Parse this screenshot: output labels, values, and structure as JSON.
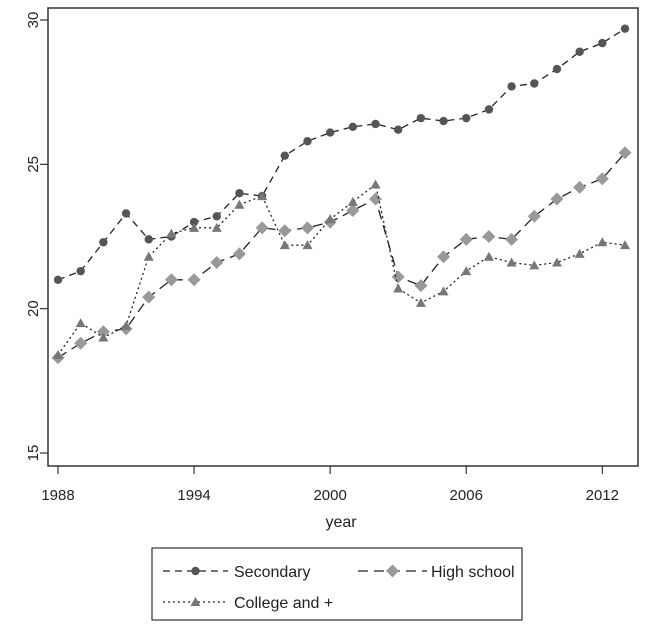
{
  "chart_data": {
    "type": "line",
    "xlabel": "year",
    "ylabel": "",
    "xlim": [
      1988,
      2013
    ],
    "ylim": [
      15,
      30
    ],
    "xticks": [
      1988,
      1994,
      2000,
      2006,
      2012
    ],
    "yticks": [
      15,
      20,
      25,
      30
    ],
    "grid": false,
    "legend_position": "bottom",
    "x": [
      1988,
      1989,
      1990,
      1991,
      1992,
      1993,
      1994,
      1995,
      1996,
      1997,
      1998,
      1999,
      2000,
      2001,
      2002,
      2003,
      2004,
      2005,
      2006,
      2007,
      2008,
      2009,
      2010,
      2011,
      2012,
      2013
    ],
    "series": [
      {
        "name": "Secondary",
        "color": "#555555",
        "line_style": "dashed",
        "marker": "circle",
        "values": [
          21.0,
          21.3,
          22.3,
          23.3,
          22.4,
          22.5,
          23.0,
          23.2,
          24.0,
          23.9,
          25.3,
          25.8,
          26.1,
          26.3,
          26.4,
          26.2,
          26.6,
          26.5,
          26.6,
          26.9,
          27.7,
          27.8,
          28.3,
          28.9,
          29.2,
          29.7
        ]
      },
      {
        "name": "High school",
        "color": "#999999",
        "line_style": "long-dashed",
        "marker": "diamond",
        "values": [
          18.3,
          18.8,
          19.2,
          19.3,
          20.4,
          21.0,
          21.0,
          21.6,
          21.9,
          22.8,
          22.7,
          22.8,
          23.0,
          23.4,
          23.8,
          21.1,
          20.8,
          21.8,
          22.4,
          22.5,
          22.4,
          23.2,
          23.8,
          24.2,
          24.5,
          25.4
        ]
      },
      {
        "name": "College and +",
        "color": "#777777",
        "line_style": "dotted",
        "marker": "triangle",
        "values": [
          18.4,
          19.5,
          19.0,
          19.4,
          21.8,
          22.6,
          22.8,
          22.8,
          23.6,
          23.9,
          22.2,
          22.2,
          23.1,
          23.7,
          24.3,
          20.7,
          20.2,
          20.6,
          21.3,
          21.8,
          21.6,
          21.5,
          21.6,
          21.9,
          22.3,
          22.2
        ]
      }
    ]
  }
}
